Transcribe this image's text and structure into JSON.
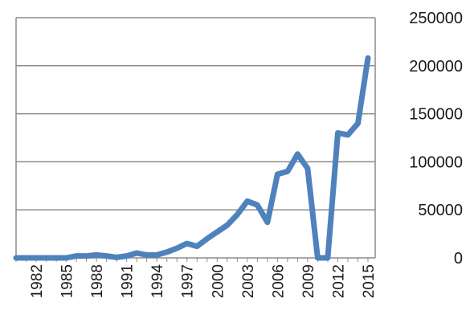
{
  "chart_data": {
    "type": "line",
    "title": "",
    "xlabel": "",
    "ylabel": "",
    "ylim": [
      0,
      250000
    ],
    "yticks": [
      "0",
      "50000",
      "100000",
      "150000",
      "200000",
      "250000"
    ],
    "xticks": [
      "1982",
      "1985",
      "1988",
      "1991",
      "1994",
      "1997",
      "2000",
      "2003",
      "2006",
      "2009",
      "2012",
      "2015"
    ],
    "grid": "horizontal",
    "legend": "none",
    "y_axis_side": "right",
    "series": [
      {
        "color": "#4f81bd",
        "x": [
          1980,
          1981,
          1982,
          1983,
          1984,
          1985,
          1986,
          1987,
          1988,
          1989,
          1990,
          1991,
          1992,
          1993,
          1994,
          1995,
          1996,
          1997,
          1998,
          1999,
          2000,
          2001,
          2002,
          2003,
          2004,
          2005,
          2006,
          2007,
          2008,
          2009,
          2010,
          2011,
          2012,
          2013,
          2014,
          2015
        ],
        "values": [
          0,
          0,
          0,
          0,
          0,
          0,
          2000,
          2000,
          3000,
          2000,
          500,
          2000,
          5000,
          3000,
          3000,
          6000,
          10000,
          15000,
          12000,
          20000,
          27000,
          34000,
          45000,
          59000,
          55000,
          37000,
          87000,
          90000,
          108000,
          93000,
          0,
          0,
          130000,
          128000,
          140000,
          208000
        ]
      }
    ]
  }
}
